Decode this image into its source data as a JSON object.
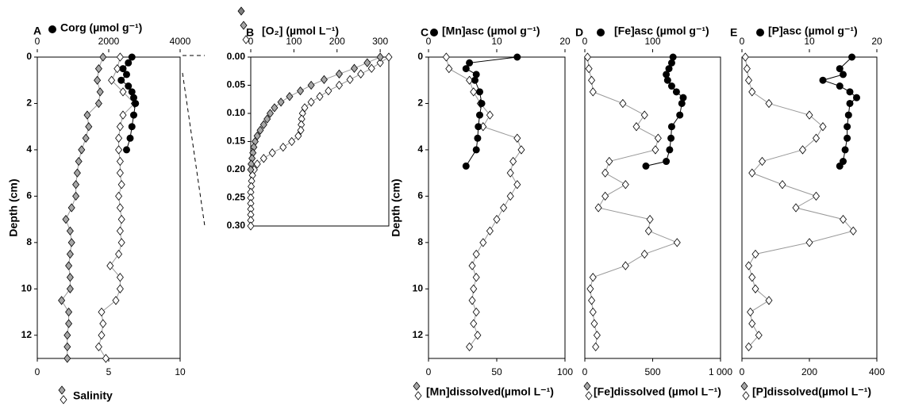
{
  "chart_data": [
    {
      "type": "scatter",
      "panel": "A",
      "x2_label": "Corg (µmol g⁻¹)",
      "x_label": "Salinity",
      "y_label": "Depth (cm)",
      "ylim": [
        13,
        0
      ],
      "yticks": [
        0,
        2,
        4,
        6,
        8,
        10,
        12
      ],
      "xlim": [
        0,
        10
      ],
      "xticks": [
        0,
        5,
        10
      ],
      "x2lim": [
        0,
        4000
      ],
      "x2ticks": [
        0,
        2000,
        4000
      ],
      "series": [
        {
          "color": "#a6a6a6",
          "marker": "diamond",
          "axis": "x",
          "depth": [
            0,
            0.5,
            1,
            1.5,
            2,
            2.5,
            3,
            3.5,
            4,
            4.5,
            5,
            5.5,
            6,
            6.5,
            7,
            7.5,
            8,
            8.5,
            9,
            9.5,
            10,
            10.5,
            11,
            11.5,
            12,
            12.5,
            13
          ],
          "values": [
            4.6,
            4.3,
            4.2,
            4.4,
            4.3,
            3.5,
            3.6,
            3.4,
            3.1,
            2.9,
            2.8,
            2.7,
            2.7,
            2.4,
            2.0,
            2.3,
            2.4,
            2.3,
            2.2,
            2.3,
            2.3,
            1.7,
            2.2,
            2.2,
            2.1,
            2.1,
            2.1
          ]
        },
        {
          "color": "#ffffff",
          "marker": "diamond",
          "axis": "x",
          "depth": [
            0,
            0.5,
            1,
            1.5,
            2,
            2.5,
            3,
            3.5,
            4,
            4.5,
            5,
            5.5,
            6,
            6.5,
            7,
            7.5,
            8,
            8.5,
            9,
            9.5,
            10,
            10.5,
            11,
            11.5,
            12,
            12.5,
            13
          ],
          "values": [
            5.8,
            5.6,
            5.2,
            6.0,
            6.8,
            6.0,
            5.8,
            5.7,
            5.7,
            5.8,
            5.8,
            5.9,
            5.7,
            5.8,
            5.9,
            5.8,
            5.9,
            5.7,
            5.1,
            5.8,
            5.8,
            5.5,
            4.5,
            4.6,
            4.5,
            4.3,
            4.8
          ]
        },
        {
          "color": "#000000",
          "marker": "circle",
          "axis": "x2",
          "depth": [
            0,
            0.25,
            0.5,
            0.75,
            1,
            1.25,
            1.5,
            1.75,
            2,
            2.5,
            3,
            3.5,
            4
          ],
          "values": [
            2650,
            2550,
            2400,
            2500,
            2350,
            2550,
            2650,
            2700,
            2750,
            2700,
            2650,
            2600,
            2500
          ]
        }
      ]
    },
    {
      "type": "scatter",
      "panel": "B",
      "x2_label": "[O₂] (µmol L⁻¹)",
      "ylim": [
        0.3,
        0
      ],
      "yticks": [
        {
          "value": 0,
          "label": "0.00"
        },
        {
          "value": 0.05,
          "label": "0.05"
        },
        {
          "value": 0.1,
          "label": "0.10"
        },
        {
          "value": 0.15,
          "label": "0.15"
        },
        {
          "value": 0.2,
          "label": "0.20"
        },
        {
          "value": 0.25,
          "label": "0.25"
        },
        {
          "value": 0.3,
          "label": "0.30"
        }
      ],
      "x2lim": [
        0,
        320
      ],
      "x2ticks": [
        0,
        100,
        200,
        300
      ],
      "series": [
        {
          "color": "#ffffff",
          "marker": "diamond",
          "axis": "x2",
          "depth": [
            0,
            0.01,
            0.02,
            0.03,
            0.04,
            0.05,
            0.06,
            0.07,
            0.08,
            0.09,
            0.1,
            0.11,
            0.12,
            0.13,
            0.14,
            0.15,
            0.16,
            0.17,
            0.18,
            0.19,
            0.2,
            0.21,
            0.22,
            0.23,
            0.24,
            0.25,
            0.26,
            0.27,
            0.28,
            0.29,
            0.3
          ],
          "values": [
            320,
            300,
            280,
            255,
            230,
            205,
            180,
            160,
            140,
            125,
            120,
            118,
            117,
            116,
            110,
            95,
            75,
            50,
            30,
            15,
            8,
            4,
            2,
            1,
            0,
            0,
            0,
            0,
            0,
            0,
            0
          ]
        },
        {
          "color": "#a6a6a6",
          "marker": "diamond",
          "axis": "x2",
          "depth": [
            0,
            0.01,
            0.02,
            0.03,
            0.04,
            0.05,
            0.06,
            0.07,
            0.08,
            0.09,
            0.1,
            0.11,
            0.12,
            0.13,
            0.14,
            0.15,
            0.16,
            0.17,
            0.18,
            0.19,
            0.2
          ],
          "values": [
            300,
            270,
            240,
            205,
            170,
            140,
            115,
            90,
            70,
            55,
            45,
            38,
            30,
            22,
            15,
            10,
            7,
            5,
            3,
            1,
            0
          ]
        }
      ]
    },
    {
      "type": "scatter",
      "panel": "C",
      "x2_label": "[Mn]asc (µmol g⁻¹)",
      "x_label": "[Mn]dissolved(µmol L⁻¹)",
      "y_label": "Depth (cm)",
      "ylim": [
        13,
        0
      ],
      "yticks": [
        0,
        2,
        4,
        6,
        8,
        10,
        12
      ],
      "xlim": [
        0,
        100
      ],
      "xticks": [
        0,
        50,
        100
      ],
      "x2lim": [
        0,
        20
      ],
      "x2ticks": [
        0,
        10,
        20
      ],
      "series": [
        {
          "color": "#ffffff",
          "marker": "diamond",
          "axis": "x",
          "depth": [
            0,
            0.5,
            1,
            1.5,
            2,
            2.5,
            3,
            3.5,
            4,
            4.5,
            5,
            5.5,
            6,
            6.5,
            7,
            7.5,
            8,
            8.5,
            9,
            9.5,
            10,
            10.5,
            11,
            11.5,
            12,
            12.5
          ],
          "values": [
            13,
            15,
            30,
            33,
            38,
            45,
            40,
            65,
            68,
            62,
            60,
            65,
            60,
            55,
            50,
            45,
            40,
            35,
            32,
            35,
            33,
            32,
            35,
            33,
            36,
            30
          ]
        },
        {
          "color": "#000000",
          "marker": "circle",
          "axis": "x2",
          "depth": [
            0,
            0.25,
            0.5,
            0.75,
            1,
            1.5,
            2,
            2.5,
            3,
            3.5,
            4,
            4.7
          ],
          "values": [
            13,
            6,
            5.5,
            7,
            6.8,
            7.5,
            7.8,
            7.5,
            7.3,
            7.2,
            7,
            5.5
          ]
        }
      ]
    },
    {
      "type": "scatter",
      "panel": "D",
      "x2_label": "[Fe]asc (µmol g⁻¹)",
      "x_label": "[Fe]dissolved (µmol L⁻¹)",
      "ylim": [
        13,
        0
      ],
      "xlim": [
        0,
        1000
      ],
      "xticks": [
        0,
        500,
        {
          "value": 1000,
          "label": "1 000"
        }
      ],
      "x2lim": [
        0,
        200
      ],
      "x2ticks": [
        0,
        100
      ],
      "series": [
        {
          "color": "#ffffff",
          "marker": "diamond",
          "axis": "x",
          "depth": [
            0,
            0.5,
            1,
            1.5,
            2,
            2.5,
            3,
            3.5,
            4,
            4.5,
            5,
            5.5,
            6,
            6.5,
            7,
            7.5,
            8,
            8.5,
            9,
            9.5,
            10,
            10.5,
            11,
            11.5,
            12,
            12.5
          ],
          "values": [
            20,
            30,
            50,
            60,
            280,
            440,
            380,
            540,
            520,
            180,
            150,
            300,
            150,
            100,
            480,
            470,
            680,
            440,
            300,
            60,
            40,
            50,
            60,
            70,
            90,
            80
          ]
        },
        {
          "color": "#000000",
          "marker": "circle",
          "axis": "x2",
          "depth": [
            0,
            0.25,
            0.5,
            0.75,
            1,
            1.25,
            1.5,
            1.75,
            2,
            2.5,
            3,
            3.5,
            4,
            4.5,
            4.7
          ],
          "values": [
            130,
            128,
            124,
            120,
            122,
            128,
            135,
            145,
            143,
            140,
            128,
            127,
            125,
            120,
            90
          ]
        }
      ]
    },
    {
      "type": "scatter",
      "panel": "E",
      "x2_label": "[P]asc (µmol g⁻¹)",
      "x_label": "[P]dissolved(µmol L⁻¹)",
      "ylim": [
        13,
        0
      ],
      "xlim": [
        0,
        400
      ],
      "xticks": [
        0,
        200,
        400
      ],
      "x2lim": [
        0,
        20
      ],
      "x2ticks": [
        0,
        10,
        20
      ],
      "series": [
        {
          "color": "#ffffff",
          "marker": "diamond",
          "axis": "x",
          "depth": [
            0,
            0.5,
            1,
            1.5,
            2,
            2.5,
            3,
            3.5,
            4,
            4.5,
            5,
            5.5,
            6,
            6.5,
            7,
            7.5,
            8,
            8.5,
            9,
            9.5,
            10,
            10.5,
            11,
            11.5,
            12,
            12.5
          ],
          "values": [
            10,
            15,
            20,
            30,
            80,
            200,
            240,
            220,
            180,
            60,
            30,
            120,
            220,
            160,
            300,
            330,
            200,
            40,
            20,
            30,
            40,
            80,
            25,
            30,
            50,
            20
          ]
        },
        {
          "color": "#000000",
          "marker": "circle",
          "axis": "x2",
          "depth": [
            0,
            0.5,
            0.75,
            1,
            1.25,
            1.5,
            1.75,
            2,
            2.5,
            3,
            3.5,
            4,
            4.5,
            4.7
          ],
          "values": [
            16.3,
            14.5,
            15,
            12,
            14.5,
            16,
            17,
            16,
            15.8,
            15.6,
            15.6,
            15.3,
            15,
            14.5
          ]
        }
      ]
    }
  ]
}
